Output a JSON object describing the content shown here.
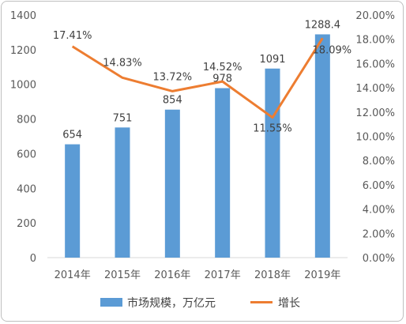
{
  "chart_data": {
    "type": "bar+line",
    "categories": [
      "2014年",
      "2015年",
      "2016年",
      "2017年",
      "2018年",
      "2019年"
    ],
    "series": [
      {
        "name": "市场规模，万亿元",
        "type": "bar",
        "axis": "left",
        "values": [
          654,
          751,
          854,
          978,
          1091,
          1288.4
        ],
        "labels": [
          "654",
          "751",
          "854",
          "978",
          "1091",
          "1288.4"
        ],
        "color": "#5B9BD5"
      },
      {
        "name": "增长",
        "type": "line",
        "axis": "right",
        "values": [
          17.41,
          14.83,
          13.72,
          14.52,
          11.55,
          18.09
        ],
        "labels": [
          "17.41%",
          "14.83%",
          "13.72%",
          "14.52%",
          "11.55%",
          "18.09%"
        ],
        "color": "#ED7D31"
      }
    ],
    "y_left": {
      "min": 0,
      "max": 1400,
      "ticks": [
        "0",
        "200",
        "400",
        "600",
        "800",
        "1000",
        "1200",
        "1400"
      ]
    },
    "y_right": {
      "min": 0,
      "max": 20,
      "ticks": [
        "0.00%",
        "2.00%",
        "4.00%",
        "6.00%",
        "8.00%",
        "10.00%",
        "12.00%",
        "14.00%",
        "16.00%",
        "18.00%",
        "20.00%"
      ]
    },
    "grid": false,
    "legend": "bottom"
  }
}
